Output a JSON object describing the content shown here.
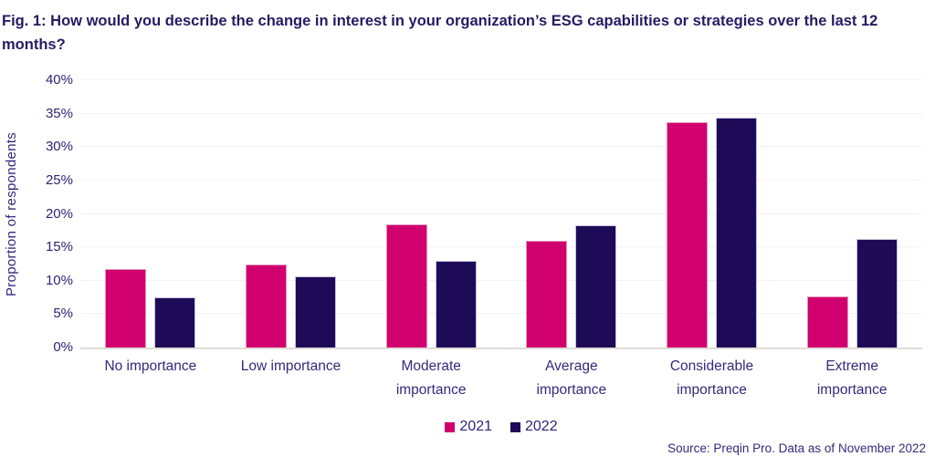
{
  "title": "Fig. 1: How would you describe the change in interest in your organization’s ESG capabilities or strategies over the last 12 months?",
  "source": "Source: Preqin Pro. Data as of November 2022",
  "colors": {
    "series_2021": "#d0006f",
    "series_2022": "#1e0b57",
    "title_text": "#241b64",
    "axis_text": "#332a7c",
    "gridline": "#f6f0f3",
    "baseline": "#e0dbd6"
  },
  "chart_data": {
    "type": "bar",
    "title": "Fig. 1: How would you describe the change in interest in your organization’s ESG capabilities or strategies over the last 12 months?",
    "xlabel": "",
    "ylabel": "Proportion of respondents",
    "categories": [
      "No importance",
      "Low importance",
      "Moderate\nimportance",
      "Average\nimportance",
      "Considerable\nimportance",
      "Extreme\nimportance"
    ],
    "series": [
      {
        "name": "2021",
        "color": "#d0006f",
        "values": [
          11.7,
          12.4,
          18.5,
          16.0,
          33.7,
          7.7
        ]
      },
      {
        "name": "2022",
        "color": "#1e0b57",
        "values": [
          7.5,
          10.7,
          13.0,
          18.3,
          34.4,
          16.2
        ]
      }
    ],
    "ylim": [
      0,
      40
    ],
    "ytick_step": 5,
    "ytick_suffix": "%",
    "grid": true,
    "legend_position": "bottom-center"
  }
}
